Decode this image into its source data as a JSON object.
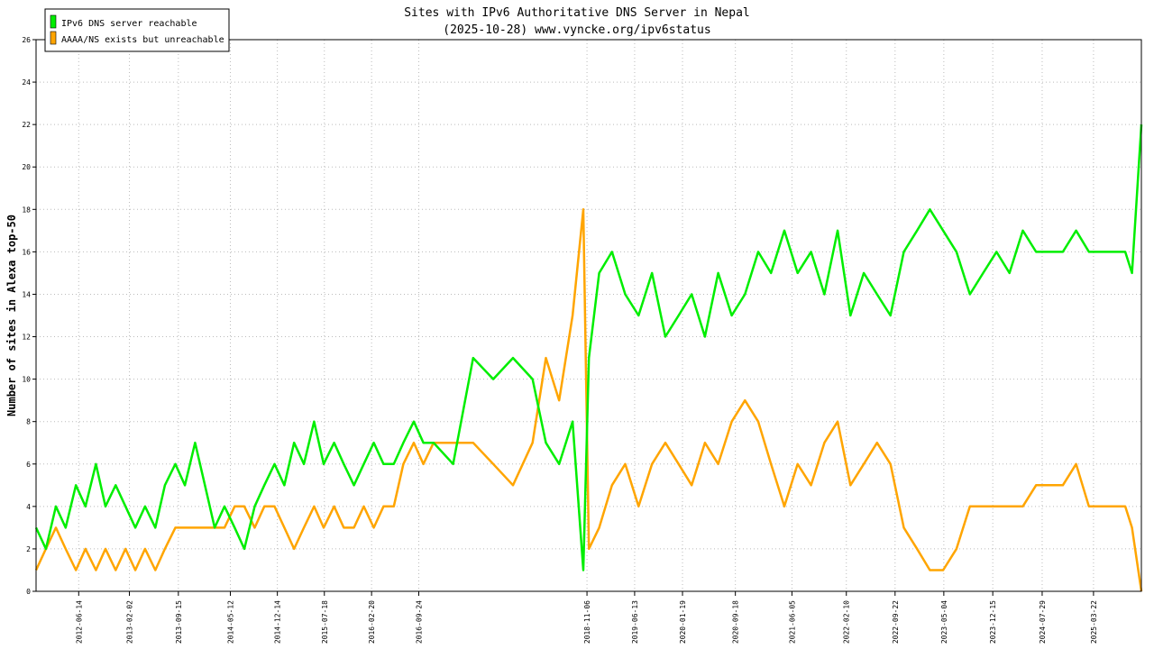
{
  "chart_data": {
    "type": "line",
    "title": "Sites with IPv6 Authoritative DNS Server in Nepal",
    "subtitle": "(2025-10-28) www.vyncke.org/ipv6status",
    "ylabel": "Number of sites in Alexa top-50",
    "xlabel": "",
    "ylim": [
      0,
      26
    ],
    "y_ticks": [
      0,
      2,
      4,
      6,
      8,
      10,
      12,
      14,
      16,
      18,
      20,
      22,
      24,
      26
    ],
    "x_ticks": [
      "2012-06-14",
      "2013-02-02",
      "2013-09-15",
      "2014-05-12",
      "2014-12-14",
      "2015-07-18",
      "2016-02-20",
      "2016-09-24",
      "2018-11-06",
      "2019-06-13",
      "2020-01-19",
      "2020-09-18",
      "2021-06-05",
      "2022-02-10",
      "2022-09-22",
      "2023-05-04",
      "2023-12-15",
      "2024-07-29",
      "2025-03-22"
    ],
    "x_range": [
      "2011-12-01",
      "2025-10-28"
    ],
    "grid": true,
    "legend_position": "top-left",
    "series": [
      {
        "name": "IPv6 DNS server reachable",
        "color": "#00ee00",
        "x": [
          "2011-12-01",
          "2012-01-15",
          "2012-03-01",
          "2012-04-15",
          "2012-06-01",
          "2012-07-15",
          "2012-09-01",
          "2012-10-15",
          "2012-12-01",
          "2013-01-15",
          "2013-03-01",
          "2013-04-15",
          "2013-06-01",
          "2013-07-15",
          "2013-09-01",
          "2013-10-15",
          "2013-12-01",
          "2014-01-15",
          "2014-03-01",
          "2014-04-15",
          "2014-06-01",
          "2014-07-15",
          "2014-09-01",
          "2014-10-15",
          "2014-12-01",
          "2015-01-15",
          "2015-03-01",
          "2015-04-15",
          "2015-06-01",
          "2015-07-15",
          "2015-09-01",
          "2015-10-15",
          "2015-12-01",
          "2016-01-15",
          "2016-03-01",
          "2016-04-15",
          "2016-06-01",
          "2016-07-15",
          "2016-09-01",
          "2016-10-15",
          "2016-12-01",
          "2017-03-01",
          "2017-06-01",
          "2017-09-01",
          "2017-12-01",
          "2018-03-01",
          "2018-05-01",
          "2018-07-01",
          "2018-09-01",
          "2018-10-20",
          "2018-11-15",
          "2019-01-01",
          "2019-03-01",
          "2019-05-01",
          "2019-07-01",
          "2019-09-01",
          "2019-11-01",
          "2020-01-01",
          "2020-03-01",
          "2020-05-01",
          "2020-07-01",
          "2020-09-01",
          "2020-11-01",
          "2021-01-01",
          "2021-03-01",
          "2021-05-01",
          "2021-07-01",
          "2021-09-01",
          "2021-11-01",
          "2022-01-01",
          "2022-03-01",
          "2022-05-01",
          "2022-07-01",
          "2022-09-01",
          "2022-11-01",
          "2023-01-01",
          "2023-03-01",
          "2023-05-01",
          "2023-07-01",
          "2023-09-01",
          "2023-11-01",
          "2024-01-01",
          "2024-03-01",
          "2024-05-01",
          "2024-07-01",
          "2024-09-01",
          "2024-11-01",
          "2025-01-01",
          "2025-03-01",
          "2025-05-01",
          "2025-07-01",
          "2025-08-15",
          "2025-09-15",
          "2025-10-28"
        ],
        "values": [
          3,
          2,
          4,
          3,
          5,
          4,
          6,
          4,
          5,
          4,
          3,
          4,
          3,
          5,
          6,
          5,
          7,
          5,
          3,
          4,
          3,
          2,
          4,
          5,
          6,
          5,
          7,
          6,
          8,
          6,
          7,
          6,
          5,
          6,
          7,
          6,
          6,
          7,
          8,
          7,
          7,
          6,
          11,
          10,
          11,
          10,
          7,
          6,
          8,
          1,
          11,
          15,
          16,
          14,
          13,
          15,
          12,
          13,
          14,
          12,
          15,
          13,
          14,
          16,
          15,
          17,
          15,
          16,
          14,
          17,
          13,
          15,
          14,
          13,
          16,
          17,
          18,
          17,
          16,
          14,
          15,
          16,
          15,
          17,
          16,
          16,
          16,
          17,
          16,
          16,
          16,
          16,
          15,
          22
        ]
      },
      {
        "name": "AAAA/NS exists but unreachable",
        "color": "#ffa500",
        "x": [
          "2011-12-01",
          "2012-01-15",
          "2012-03-01",
          "2012-04-15",
          "2012-06-01",
          "2012-07-15",
          "2012-09-01",
          "2012-10-15",
          "2012-12-01",
          "2013-01-15",
          "2013-03-01",
          "2013-04-15",
          "2013-06-01",
          "2013-07-15",
          "2013-09-01",
          "2013-10-15",
          "2013-12-01",
          "2014-01-15",
          "2014-03-01",
          "2014-04-15",
          "2014-06-01",
          "2014-07-15",
          "2014-09-01",
          "2014-10-15",
          "2014-12-01",
          "2015-01-15",
          "2015-03-01",
          "2015-04-15",
          "2015-06-01",
          "2015-07-15",
          "2015-09-01",
          "2015-10-15",
          "2015-12-01",
          "2016-01-15",
          "2016-03-01",
          "2016-04-15",
          "2016-06-01",
          "2016-07-15",
          "2016-09-01",
          "2016-10-15",
          "2016-12-01",
          "2017-03-01",
          "2017-06-01",
          "2017-09-01",
          "2017-12-01",
          "2018-03-01",
          "2018-05-01",
          "2018-07-01",
          "2018-09-01",
          "2018-10-20",
          "2018-11-15",
          "2019-01-01",
          "2019-03-01",
          "2019-05-01",
          "2019-07-01",
          "2019-09-01",
          "2019-11-01",
          "2020-01-01",
          "2020-03-01",
          "2020-05-01",
          "2020-07-01",
          "2020-09-01",
          "2020-11-01",
          "2021-01-01",
          "2021-03-01",
          "2021-05-01",
          "2021-07-01",
          "2021-09-01",
          "2021-11-01",
          "2022-01-01",
          "2022-03-01",
          "2022-05-01",
          "2022-07-01",
          "2022-09-01",
          "2022-11-01",
          "2023-01-01",
          "2023-03-01",
          "2023-05-01",
          "2023-07-01",
          "2023-09-01",
          "2023-11-01",
          "2024-01-01",
          "2024-03-01",
          "2024-05-01",
          "2024-07-01",
          "2024-09-01",
          "2024-11-01",
          "2025-01-01",
          "2025-03-01",
          "2025-05-01",
          "2025-07-01",
          "2025-08-15",
          "2025-09-15",
          "2025-10-28"
        ],
        "values": [
          1,
          2,
          3,
          2,
          1,
          2,
          1,
          2,
          1,
          2,
          1,
          2,
          1,
          2,
          3,
          3,
          3,
          3,
          3,
          3,
          4,
          4,
          3,
          4,
          4,
          3,
          2,
          3,
          4,
          3,
          4,
          3,
          3,
          4,
          3,
          4,
          4,
          6,
          7,
          6,
          7,
          7,
          7,
          6,
          5,
          7,
          11,
          9,
          13,
          18,
          2,
          3,
          5,
          6,
          4,
          6,
          7,
          6,
          5,
          7,
          6,
          8,
          9,
          8,
          6,
          4,
          6,
          5,
          7,
          8,
          5,
          6,
          7,
          6,
          3,
          2,
          1,
          1,
          2,
          4,
          4,
          4,
          4,
          4,
          5,
          5,
          5,
          6,
          4,
          4,
          4,
          4,
          3,
          0
        ]
      }
    ]
  }
}
